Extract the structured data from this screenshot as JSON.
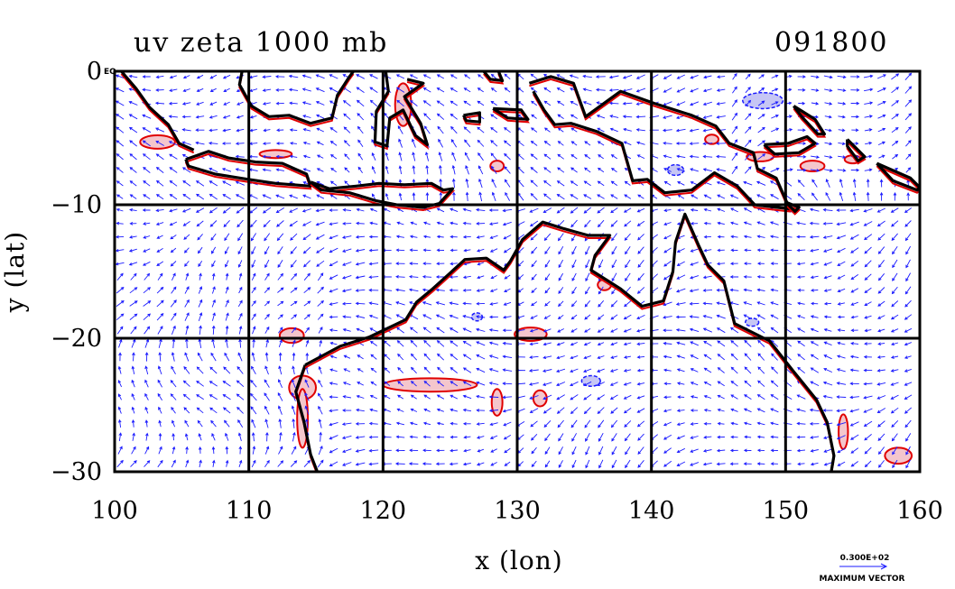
{
  "chart_data": {
    "type": "vector-field-map",
    "title_left": "uv zeta 1000 mb",
    "title_right": "091800",
    "xlabel": "x (lon)",
    "ylabel": "y (lat)",
    "xlim": [
      100,
      160
    ],
    "ylim": [
      -30,
      0
    ],
    "x_ticks": [
      100,
      110,
      120,
      130,
      140,
      150,
      160
    ],
    "x_tick_labels": [
      "100",
      "110",
      "120",
      "130",
      "140",
      "150",
      "160"
    ],
    "y_ticks": [
      0,
      -10,
      -20,
      -30
    ],
    "y_tick_labels": [
      "0",
      "−10",
      "−20",
      "−30"
    ],
    "corner_label": "EQ",
    "grid": true,
    "grid_lines_x": [
      110,
      120,
      130,
      140,
      150
    ],
    "grid_lines_y": [
      -10,
      -20
    ],
    "reference_vector": {
      "value": "0.300E+02",
      "label": "MAXIMUM VECTOR"
    },
    "colors": {
      "vectors": "#1a1aff",
      "positive_contour": "#e00000",
      "positive_fill": "#f4c6cc",
      "negative_contour": "#1a1aff",
      "negative_fill": "#c6c6f4",
      "coastline": "#000000"
    },
    "coastlines": [
      {
        "name": "sumatra-tip",
        "points": [
          [
            100.5,
            0
          ],
          [
            101.6,
            -1.3
          ],
          [
            102.6,
            -2.7
          ],
          [
            104.0,
            -4.0
          ],
          [
            104.8,
            -5.4
          ],
          [
            105.9,
            -5.9
          ]
        ]
      },
      {
        "name": "borneo-south",
        "points": [
          [
            109.5,
            0
          ],
          [
            109.3,
            -1.0
          ],
          [
            110.2,
            -2.6
          ],
          [
            111.5,
            -3.4
          ],
          [
            113.0,
            -3.3
          ],
          [
            114.6,
            -3.9
          ],
          [
            116.2,
            -3.5
          ],
          [
            116.6,
            -1.8
          ],
          [
            117.5,
            -0.4
          ],
          [
            117.8,
            0
          ]
        ]
      },
      {
        "name": "java",
        "points": [
          [
            105.3,
            -6.6
          ],
          [
            107.0,
            -6.0
          ],
          [
            108.5,
            -6.5
          ],
          [
            110.5,
            -6.8
          ],
          [
            112.5,
            -6.9
          ],
          [
            114.3,
            -7.7
          ],
          [
            114.6,
            -8.6
          ],
          [
            112.0,
            -8.4
          ],
          [
            110.0,
            -8.1
          ],
          [
            107.5,
            -7.7
          ],
          [
            105.5,
            -7.1
          ],
          [
            105.3,
            -6.6
          ]
        ]
      },
      {
        "name": "sulawesi",
        "points": [
          [
            120.2,
            0
          ],
          [
            120.4,
            -1.5
          ],
          [
            119.5,
            -3.0
          ],
          [
            119.4,
            -5.3
          ],
          [
            120.3,
            -5.6
          ],
          [
            120.5,
            -3.5
          ],
          [
            121.5,
            -2.9
          ],
          [
            122.4,
            -4.8
          ],
          [
            123.3,
            -5.5
          ],
          [
            122.8,
            -3.9
          ],
          [
            121.6,
            -1.9
          ],
          [
            123.0,
            -0.9
          ],
          [
            121.8,
            -0.6
          ]
        ]
      },
      {
        "name": "lesser-sunda",
        "points": [
          [
            114.6,
            -8.3
          ],
          [
            116.0,
            -8.8
          ],
          [
            118.0,
            -8.6
          ],
          [
            119.7,
            -8.4
          ],
          [
            121.6,
            -8.5
          ],
          [
            123.6,
            -8.4
          ],
          [
            124.5,
            -8.9
          ],
          [
            125.2,
            -8.8
          ],
          [
            124.2,
            -9.9
          ],
          [
            123.0,
            -10.2
          ],
          [
            121.0,
            -10.0
          ],
          [
            119.5,
            -9.7
          ],
          [
            117.5,
            -9.1
          ],
          [
            115.4,
            -8.9
          ],
          [
            114.6,
            -8.3
          ]
        ]
      },
      {
        "name": "new-guinea",
        "points": [
          [
            130.9,
            -0.9
          ],
          [
            132.5,
            -0.4
          ],
          [
            134.2,
            -0.9
          ],
          [
            135.1,
            -3.4
          ],
          [
            137.7,
            -1.5
          ],
          [
            140.2,
            -2.4
          ],
          [
            143.0,
            -3.3
          ],
          [
            144.8,
            -4.1
          ],
          [
            145.8,
            -5.4
          ],
          [
            147.6,
            -6.1
          ],
          [
            147.9,
            -7.3
          ],
          [
            149.3,
            -8.0
          ],
          [
            150.3,
            -10.3
          ],
          [
            149.4,
            -10.2
          ],
          [
            147.7,
            -10.0
          ],
          [
            146.4,
            -8.6
          ],
          [
            144.7,
            -7.6
          ],
          [
            143.0,
            -8.9
          ],
          [
            141.0,
            -9.1
          ],
          [
            139.7,
            -8.1
          ],
          [
            138.6,
            -8.2
          ],
          [
            137.8,
            -5.4
          ],
          [
            135.9,
            -4.5
          ],
          [
            134.0,
            -3.9
          ],
          [
            132.8,
            -4.0
          ],
          [
            132.0,
            -2.9
          ],
          [
            131.2,
            -1.5
          ]
        ]
      },
      {
        "name": "australia",
        "points": [
          [
            114.2,
            -22.0
          ],
          [
            113.5,
            -24.0
          ],
          [
            114.1,
            -26.2
          ],
          [
            114.6,
            -28.7
          ],
          [
            115.1,
            -30.0
          ]
        ]
      },
      {
        "name": "australia-north",
        "points": [
          [
            114.2,
            -22.0
          ],
          [
            116.8,
            -20.6
          ],
          [
            119.0,
            -19.9
          ],
          [
            121.7,
            -18.6
          ],
          [
            122.5,
            -17.3
          ],
          [
            123.7,
            -16.3
          ],
          [
            124.9,
            -15.2
          ],
          [
            126.1,
            -14.1
          ],
          [
            127.7,
            -14.0
          ],
          [
            129.0,
            -14.9
          ],
          [
            129.5,
            -14.2
          ],
          [
            130.4,
            -12.6
          ],
          [
            131.9,
            -11.3
          ],
          [
            133.5,
            -11.8
          ],
          [
            135.3,
            -12.3
          ],
          [
            136.9,
            -12.3
          ],
          [
            135.8,
            -13.8
          ],
          [
            135.5,
            -14.9
          ],
          [
            137.7,
            -16.3
          ],
          [
            139.3,
            -17.6
          ],
          [
            140.9,
            -17.2
          ],
          [
            141.6,
            -15.0
          ],
          [
            141.8,
            -12.8
          ],
          [
            142.5,
            -10.7
          ],
          [
            143.5,
            -13.0
          ],
          [
            144.2,
            -14.5
          ],
          [
            145.4,
            -15.7
          ],
          [
            146.2,
            -18.9
          ],
          [
            148.8,
            -20.2
          ],
          [
            150.6,
            -22.5
          ],
          [
            152.3,
            -24.6
          ],
          [
            153.1,
            -26.3
          ],
          [
            153.6,
            -28.8
          ],
          [
            153.4,
            -30.0
          ]
        ]
      },
      {
        "name": "halmahera",
        "points": [
          [
            127.5,
            0
          ],
          [
            128.0,
            -0.6
          ],
          [
            128.9,
            -0.7
          ],
          [
            128.6,
            0
          ]
        ]
      },
      {
        "name": "buru-seram",
        "points": [
          [
            126.0,
            -3.3
          ],
          [
            127.2,
            -3.1
          ],
          [
            127.2,
            -3.8
          ],
          [
            126.2,
            -3.7
          ],
          [
            126.0,
            -3.3
          ]
        ]
      },
      {
        "name": "seram",
        "points": [
          [
            128.2,
            -2.8
          ],
          [
            130.3,
            -2.9
          ],
          [
            130.8,
            -3.6
          ],
          [
            129.3,
            -3.5
          ],
          [
            128.2,
            -2.8
          ]
        ]
      },
      {
        "name": "new-britain",
        "points": [
          [
            148.4,
            -5.5
          ],
          [
            150.2,
            -5.4
          ],
          [
            151.6,
            -4.9
          ],
          [
            152.2,
            -5.4
          ],
          [
            151.0,
            -6.1
          ],
          [
            149.2,
            -6.2
          ],
          [
            148.4,
            -5.5
          ]
        ]
      },
      {
        "name": "new-ireland",
        "points": [
          [
            150.6,
            -2.6
          ],
          [
            152.2,
            -3.6
          ],
          [
            152.9,
            -4.7
          ],
          [
            152.4,
            -4.7
          ],
          [
            151.2,
            -3.4
          ],
          [
            150.6,
            -2.6
          ]
        ]
      },
      {
        "name": "bougainville",
        "points": [
          [
            154.6,
            -5.1
          ],
          [
            155.9,
            -6.4
          ],
          [
            155.4,
            -6.7
          ],
          [
            154.6,
            -5.6
          ],
          [
            154.6,
            -5.1
          ]
        ]
      },
      {
        "name": "solomons",
        "points": [
          [
            156.8,
            -6.9
          ],
          [
            159.3,
            -8.0
          ],
          [
            160,
            -8.7
          ],
          [
            159.8,
            -8.9
          ],
          [
            158.0,
            -8.2
          ],
          [
            156.8,
            -6.9
          ]
        ]
      },
      {
        "name": "d-entrecasteaux",
        "points": [
          [
            150.0,
            -9.8
          ],
          [
            151.0,
            -10.2
          ],
          [
            150.7,
            -10.5
          ],
          [
            150.0,
            -9.8
          ]
        ]
      }
    ],
    "positive_vorticity_regions": [
      {
        "center": [
          103.2,
          -5.3
        ],
        "radius": [
          1.3,
          0.5
        ]
      },
      {
        "center": [
          112.0,
          -6.2
        ],
        "radius": [
          1.2,
          0.3
        ]
      },
      {
        "center": [
          113.2,
          -19.8
        ],
        "radius": [
          0.9,
          0.55
        ]
      },
      {
        "center": [
          114.0,
          -23.7
        ],
        "radius": [
          1.0,
          0.9
        ]
      },
      {
        "center": [
          114.0,
          -26.0
        ],
        "radius": [
          0.4,
          2.2
        ]
      },
      {
        "center": [
          123.5,
          -23.5
        ],
        "radius": [
          3.5,
          0.5
        ]
      },
      {
        "center": [
          131.0,
          -19.7
        ],
        "radius": [
          1.2,
          0.5
        ]
      },
      {
        "center": [
          131.7,
          -24.5
        ],
        "radius": [
          0.5,
          0.6
        ]
      },
      {
        "center": [
          128.5,
          -24.8
        ],
        "radius": [
          0.4,
          1.0
        ]
      },
      {
        "center": [
          148.1,
          -6.4
        ],
        "radius": [
          1.0,
          0.35
        ]
      },
      {
        "center": [
          144.5,
          -5.1
        ],
        "radius": [
          0.5,
          0.35
        ]
      },
      {
        "center": [
          152.0,
          -7.1
        ],
        "radius": [
          0.9,
          0.4
        ]
      },
      {
        "center": [
          155.0,
          -6.6
        ],
        "radius": [
          0.6,
          0.3
        ]
      },
      {
        "center": [
          158.4,
          -28.8
        ],
        "radius": [
          1.0,
          0.6
        ]
      },
      {
        "center": [
          154.3,
          -27.0
        ],
        "radius": [
          0.35,
          1.3
        ]
      },
      {
        "center": [
          136.5,
          -16.0
        ],
        "radius": [
          0.5,
          0.4
        ]
      },
      {
        "center": [
          121.5,
          -2.5
        ],
        "radius": [
          0.6,
          1.6
        ]
      },
      {
        "center": [
          128.5,
          -7.1
        ],
        "radius": [
          0.5,
          0.4
        ]
      }
    ],
    "negative_vorticity_regions": [
      {
        "center": [
          135.5,
          -23.2
        ],
        "radius": [
          0.7,
          0.4
        ]
      },
      {
        "center": [
          148.3,
          -2.2
        ],
        "radius": [
          1.5,
          0.6
        ]
      },
      {
        "center": [
          141.8,
          -7.4
        ],
        "radius": [
          0.6,
          0.4
        ]
      },
      {
        "center": [
          147.5,
          -18.8
        ],
        "radius": [
          0.5,
          0.3
        ]
      },
      {
        "center": [
          127.0,
          -18.4
        ],
        "radius": [
          0.4,
          0.3
        ]
      }
    ]
  }
}
